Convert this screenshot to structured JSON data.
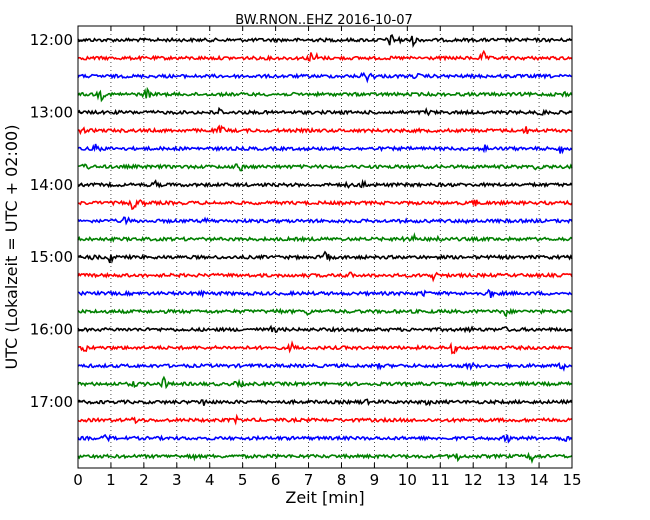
{
  "chart_data": {
    "type": "line",
    "title": "BW.RNON..EHZ 2016-10-07",
    "xlabel": "Zeit  [min]",
    "ylabel": "UTC (Lokalzeit = UTC + 02:00)",
    "xlim": [
      0,
      15
    ],
    "x_ticks": [
      "0",
      "1",
      "2",
      "3",
      "4",
      "5",
      "6",
      "7",
      "8",
      "9",
      "10",
      "11",
      "12",
      "13",
      "14",
      "15"
    ],
    "y_start_time": "12:00",
    "y_step_minutes": 15,
    "y_ticks": [
      "12:00",
      "13:00",
      "14:00",
      "15:00",
      "16:00",
      "17:00"
    ],
    "grid": "vertical dotted at each minute",
    "trace_count": 24,
    "trace_colors": [
      "#000000",
      "#ff0000",
      "#0000ff",
      "#008000"
    ],
    "traces": [
      {
        "start": "12:00",
        "color": "#000000"
      },
      {
        "start": "12:15",
        "color": "#ff0000"
      },
      {
        "start": "12:30",
        "color": "#0000ff"
      },
      {
        "start": "12:45",
        "color": "#008000"
      },
      {
        "start": "13:00",
        "color": "#000000"
      },
      {
        "start": "13:15",
        "color": "#ff0000"
      },
      {
        "start": "13:30",
        "color": "#0000ff"
      },
      {
        "start": "13:45",
        "color": "#008000"
      },
      {
        "start": "14:00",
        "color": "#000000"
      },
      {
        "start": "14:15",
        "color": "#ff0000"
      },
      {
        "start": "14:30",
        "color": "#0000ff"
      },
      {
        "start": "14:45",
        "color": "#008000"
      },
      {
        "start": "15:00",
        "color": "#000000"
      },
      {
        "start": "15:15",
        "color": "#ff0000"
      },
      {
        "start": "15:30",
        "color": "#0000ff"
      },
      {
        "start": "15:45",
        "color": "#008000"
      },
      {
        "start": "16:00",
        "color": "#000000"
      },
      {
        "start": "16:15",
        "color": "#ff0000"
      },
      {
        "start": "16:30",
        "color": "#0000ff"
      },
      {
        "start": "16:45",
        "color": "#008000"
      },
      {
        "start": "17:00",
        "color": "#000000"
      },
      {
        "start": "17:15",
        "color": "#ff0000"
      },
      {
        "start": "17:30",
        "color": "#0000ff"
      },
      {
        "start": "17:45",
        "color": "#008000"
      }
    ]
  }
}
